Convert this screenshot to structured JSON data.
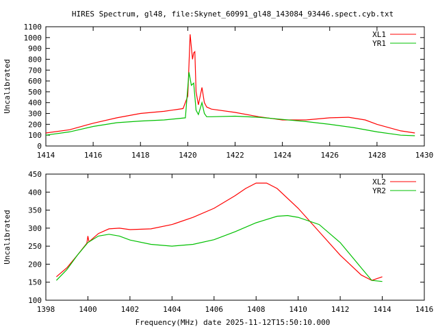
{
  "title": "HIRES Spectrum, gl48, file:Skynet_60991_gl48_143084_93446.spect.cyb.txt",
  "xlabel": "Frequency(MHz) date 2025-11-12T15:50:10.000",
  "chart_data": [
    {
      "type": "line",
      "ylabel": "Uncalibrated",
      "xlim": [
        1414,
        1430
      ],
      "ylim": [
        0,
        1100
      ],
      "xticks": [
        1414,
        1416,
        1418,
        1420,
        1422,
        1424,
        1426,
        1428,
        1430
      ],
      "yticks": [
        0,
        100,
        200,
        300,
        400,
        500,
        600,
        700,
        800,
        900,
        1000,
        1100
      ],
      "legend": "top-right",
      "series": [
        {
          "name": "XL1",
          "color": "#ff0000",
          "points": [
            [
              1414,
              120
            ],
            [
              1415,
              150
            ],
            [
              1416,
              210
            ],
            [
              1417,
              260
            ],
            [
              1418,
              300
            ],
            [
              1419,
              320
            ],
            [
              1419.8,
              345
            ],
            [
              1420.0,
              460
            ],
            [
              1420.1,
              1030
            ],
            [
              1420.2,
              800
            ],
            [
              1420.25,
              860
            ],
            [
              1420.3,
              870
            ],
            [
              1420.35,
              500
            ],
            [
              1420.45,
              380
            ],
            [
              1420.6,
              540
            ],
            [
              1420.7,
              400
            ],
            [
              1420.8,
              360
            ],
            [
              1421,
              340
            ],
            [
              1422,
              310
            ],
            [
              1423,
              270
            ],
            [
              1424,
              240
            ],
            [
              1425,
              240
            ],
            [
              1426,
              260
            ],
            [
              1426.8,
              265
            ],
            [
              1427.5,
              240
            ],
            [
              1428,
              200
            ],
            [
              1429,
              140
            ],
            [
              1429.6,
              120
            ]
          ]
        },
        {
          "name": "YR1",
          "color": "#00c000",
          "points": [
            [
              1414,
              100
            ],
            [
              1415,
              130
            ],
            [
              1416,
              180
            ],
            [
              1417,
              215
            ],
            [
              1418,
              230
            ],
            [
              1419,
              240
            ],
            [
              1419.9,
              260
            ],
            [
              1420.05,
              680
            ],
            [
              1420.15,
              560
            ],
            [
              1420.25,
              580
            ],
            [
              1420.35,
              330
            ],
            [
              1420.45,
              290
            ],
            [
              1420.6,
              400
            ],
            [
              1420.7,
              300
            ],
            [
              1420.8,
              270
            ],
            [
              1421,
              270
            ],
            [
              1422,
              275
            ],
            [
              1423,
              265
            ],
            [
              1424,
              245
            ],
            [
              1425,
              225
            ],
            [
              1426,
              200
            ],
            [
              1427,
              170
            ],
            [
              1428,
              130
            ],
            [
              1429,
              100
            ],
            [
              1429.6,
              95
            ]
          ]
        }
      ]
    },
    {
      "type": "line",
      "ylabel": "Uncalibrated",
      "xlim": [
        1398,
        1416
      ],
      "ylim": [
        100,
        450
      ],
      "xticks": [
        1398,
        1400,
        1402,
        1404,
        1406,
        1408,
        1410,
        1412,
        1414,
        1416
      ],
      "yticks": [
        100,
        150,
        200,
        250,
        300,
        350,
        400,
        450
      ],
      "legend": "top-right",
      "series": [
        {
          "name": "XL2",
          "color": "#ff0000",
          "points": [
            [
              1398.5,
              165
            ],
            [
              1399,
              190
            ],
            [
              1399.5,
              225
            ],
            [
              1399.95,
              258
            ],
            [
              1400,
              278
            ],
            [
              1400.05,
              262
            ],
            [
              1400.5,
              285
            ],
            [
              1401,
              298
            ],
            [
              1401.5,
              300
            ],
            [
              1402,
              296
            ],
            [
              1403,
              298
            ],
            [
              1404,
              310
            ],
            [
              1405,
              330
            ],
            [
              1406,
              355
            ],
            [
              1407,
              390
            ],
            [
              1407.5,
              410
            ],
            [
              1408,
              425
            ],
            [
              1408.5,
              425
            ],
            [
              1409,
              410
            ],
            [
              1410,
              355
            ],
            [
              1411,
              290
            ],
            [
              1412,
              225
            ],
            [
              1413,
              170
            ],
            [
              1413.5,
              155
            ],
            [
              1414,
              165
            ]
          ]
        },
        {
          "name": "YR2",
          "color": "#00c000",
          "points": [
            [
              1398.5,
              155
            ],
            [
              1399,
              185
            ],
            [
              1399.5,
              225
            ],
            [
              1400,
              260
            ],
            [
              1400.5,
              278
            ],
            [
              1401,
              283
            ],
            [
              1401.5,
              278
            ],
            [
              1402,
              267
            ],
            [
              1403,
              255
            ],
            [
              1404,
              250
            ],
            [
              1405,
              255
            ],
            [
              1406,
              268
            ],
            [
              1407,
              290
            ],
            [
              1408,
              315
            ],
            [
              1409,
              333
            ],
            [
              1409.5,
              335
            ],
            [
              1410,
              330
            ],
            [
              1411,
              310
            ],
            [
              1412,
              260
            ],
            [
              1413,
              190
            ],
            [
              1413.5,
              155
            ],
            [
              1414,
              152
            ]
          ]
        }
      ]
    }
  ]
}
